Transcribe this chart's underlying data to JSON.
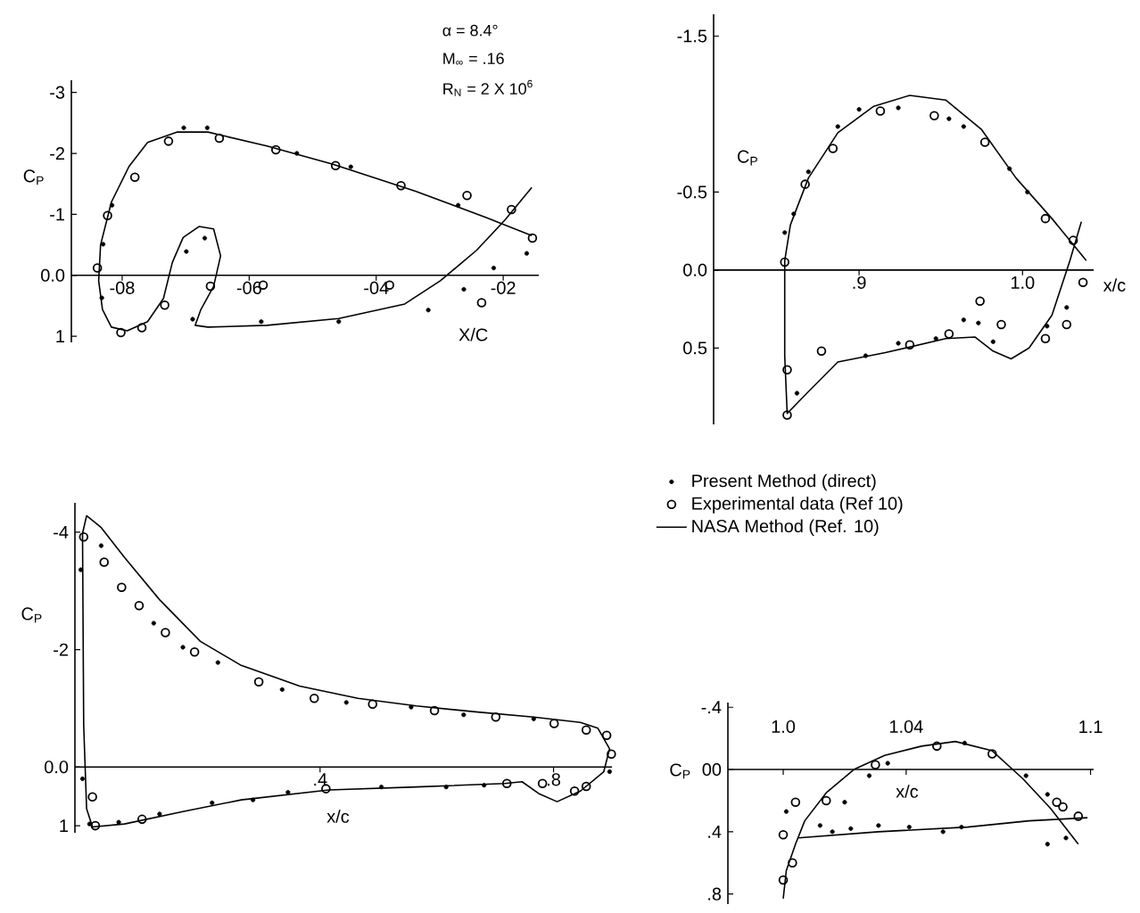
{
  "chart_data": [
    {
      "type": "scatter",
      "xlabel": "X/C",
      "ylabel": "C$_{P}$",
      "annotations": [
        "α = 8.4°",
        "M$_{∞}$ = .16",
        "R$_{N}$ = 2 X 10$^{6}$"
      ],
      "xlim": [
        -8.8,
        -1.44
      ],
      "ylim": [
        1.1,
        -3.2
      ],
      "xticks": [
        {
          "value": -8,
          "label": "-08"
        },
        {
          "value": -6,
          "label": "-06"
        },
        {
          "value": -4,
          "label": "-04"
        },
        {
          "value": -2,
          "label": "-02"
        }
      ],
      "yticks": [
        -3,
        -2,
        -1,
        {
          "value": 0,
          "label": "0.0"
        },
        1
      ],
      "series": [
        {
          "marker": "circle",
          "color": "#000000",
          "x": [
            -7.03,
            -6.66,
            -5.25,
            -4.4,
            -2.71,
            -1.63,
            -2.15,
            -2.62,
            -3.18,
            -4.59,
            -5.81,
            -6.89,
            -6.7,
            -6.99,
            -8.3,
            -8.16,
            -8.32
          ],
          "values": [
            -2.42,
            -2.42,
            -2.0,
            -1.78,
            -1.15,
            -0.36,
            -0.12,
            0.23,
            0.57,
            0.76,
            0.76,
            0.72,
            -0.61,
            -0.39,
            -0.51,
            -1.15,
            0.37
          ]
        },
        {
          "marker": "circle",
          "color": "#000000",
          "x": [
            -8.39,
            -8.23,
            -7.8,
            -7.27,
            -6.47,
            -5.58,
            -4.64,
            -3.61,
            -2.57,
            -1.87,
            -1.54,
            -8.02,
            -7.69,
            -7.33,
            -6.61,
            -5.78,
            -3.79,
            -2.34
          ],
          "values": [
            -0.12,
            -0.98,
            -1.61,
            -2.2,
            -2.25,
            -2.06,
            -1.8,
            -1.47,
            -1.31,
            -1.08,
            -0.61,
            0.94,
            0.86,
            0.49,
            0.18,
            0.16,
            0.16,
            0.45
          ]
        },
        {
          "type": "line",
          "line_style": "solid",
          "color": "#000000",
          "x": [
            -1.55,
            -2.25,
            -3.38,
            -4.68,
            -5.72,
            -6.65,
            -7.13,
            -7.6,
            -7.89,
            -8.17,
            -8.34,
            -8.37,
            -8.31,
            -8.17,
            -7.92,
            -7.6,
            -7.35,
            -7.21,
            -7.04,
            -6.79,
            -6.56,
            -6.45,
            -6.56,
            -6.76,
            -6.85,
            -6.65,
            -5.72,
            -4.59,
            -3.55,
            -2.99,
            -2.42,
            -1.97,
            -1.55
          ],
          "values": [
            -0.65,
            -0.94,
            -1.38,
            -1.82,
            -2.12,
            -2.35,
            -2.35,
            -2.18,
            -1.79,
            -1.2,
            -0.5,
            0.09,
            0.56,
            0.85,
            0.91,
            0.76,
            0.38,
            -0.21,
            -0.62,
            -0.8,
            -0.76,
            -0.32,
            0.18,
            0.56,
            0.82,
            0.85,
            0.82,
            0.71,
            0.47,
            0.09,
            -0.41,
            -0.91,
            -1.44
          ]
        }
      ]
    },
    {
      "type": "scatter",
      "xlabel": "x/c",
      "ylabel": "C$_{P}$",
      "xlim": [
        0.811,
        1.0435
      ],
      "ylim": [
        0.99,
        -1.64
      ],
      "xticks": [
        {
          "value": 0.9,
          "label": ".9"
        },
        {
          "value": 1.0,
          "label": "1.0"
        }
      ],
      "yticks": [
        -1.5,
        -0.5,
        {
          "value": 0,
          "label": "0.0"
        },
        0.5
      ],
      "series": [
        {
          "marker": "circle",
          "color": "#000000",
          "x": [
            0.8545,
            0.86,
            0.869,
            0.887,
            0.9,
            0.924,
            0.955,
            0.964,
            0.992,
            1.003,
            0.964,
            0.973,
            0.982,
            1.015,
            1.027,
            0.862,
            0.904,
            0.924,
            0.947
          ],
          "values": [
            -0.24,
            -0.36,
            -0.63,
            -0.92,
            -1.03,
            -1.04,
            -0.97,
            -0.92,
            -0.65,
            -0.5,
            0.32,
            0.34,
            0.46,
            0.36,
            0.24,
            0.79,
            0.55,
            0.47,
            0.44
          ]
        },
        {
          "marker": "circle",
          "color": "#000000",
          "x": [
            0.8545,
            0.867,
            0.884,
            0.913,
            0.946,
            0.977,
            1.014,
            1.031,
            1.037,
            1.027,
            1.014,
            0.987,
            0.974,
            0.955,
            0.931,
            0.877,
            0.856,
            0.856
          ],
          "values": [
            -0.05,
            -0.55,
            -0.78,
            -1.02,
            -0.99,
            -0.82,
            -0.33,
            -0.19,
            0.08,
            0.35,
            0.44,
            0.35,
            0.2,
            0.41,
            0.48,
            0.52,
            0.64,
            0.93
          ]
        },
        {
          "type": "line",
          "line_style": "solid",
          "color": "#000000",
          "x": [
            1.039,
            1.018,
            0.996,
            0.975,
            0.953,
            0.931,
            0.909,
            0.887,
            0.869,
            0.858,
            0.8545,
            0.8545,
            0.856,
            0.869,
            0.887,
            0.916,
            0.953,
            0.971,
            0.982,
            0.993,
            1.004,
            1.018,
            1.029,
            1.036
          ],
          "values": [
            -0.06,
            -0.33,
            -0.59,
            -0.9,
            -1.09,
            -1.12,
            -1.05,
            -0.88,
            -0.59,
            -0.29,
            -0.06,
            0.55,
            0.92,
            0.78,
            0.59,
            0.53,
            0.44,
            0.43,
            0.52,
            0.57,
            0.5,
            0.29,
            -0.06,
            -0.31
          ]
        }
      ]
    },
    {
      "type": "scatter",
      "xlabel": "x/c",
      "ylabel": "C$_{P}$",
      "legend": "top right",
      "xlim": [
        -0.02,
        0.9
      ],
      "ylim": [
        1.12,
        -4.5
      ],
      "xticks": [
        {
          "value": 0.4,
          "label": ".4"
        },
        {
          "value": 0.8,
          "label": ".8"
        }
      ],
      "yticks": [
        -4,
        -2,
        {
          "value": 0,
          "label": "0.0"
        },
        1
      ],
      "series": [
        {
          "name": "Present Method (direct)",
          "marker": "circle",
          "color": "#000000",
          "x": [
            -0.01,
            0.025,
            0.115,
            0.165,
            0.225,
            0.335,
            0.445,
            0.556,
            0.646,
            0.766,
            0.005,
            0.055,
            0.125,
            0.215,
            0.285,
            0.345,
            0.505,
            0.616,
            0.681,
            0.896,
            -0.007
          ],
          "values": [
            -3.36,
            -3.77,
            -2.45,
            -2.04,
            -1.78,
            -1.32,
            -1.1,
            -1.02,
            -0.89,
            -0.82,
            0.97,
            0.94,
            0.8,
            0.61,
            0.56,
            0.43,
            0.34,
            0.34,
            0.31,
            0.08,
            0.2
          ]
        },
        {
          "name": "Experimental data (Ref 10)",
          "marker": "circle",
          "color": "#000000",
          "x": [
            -0.005,
            0.03,
            0.06,
            0.09,
            0.135,
            0.185,
            0.295,
            0.39,
            0.49,
            0.596,
            0.701,
            0.801,
            0.856,
            0.891,
            0.899,
            0.015,
            0.095,
            0.41,
            0.72,
            0.781,
            0.836,
            0.856,
            0.01
          ],
          "values": [
            -3.92,
            -3.49,
            -3.06,
            -2.75,
            -2.29,
            -1.96,
            -1.45,
            -1.17,
            -1.07,
            -0.96,
            -0.85,
            -0.74,
            -0.63,
            -0.54,
            -0.22,
            1.0,
            0.89,
            0.37,
            0.28,
            0.28,
            0.41,
            0.33,
            0.51
          ]
        },
        {
          "name": "NASA Method (Ref. 10)",
          "type": "line",
          "line_style": "solid",
          "color": "#000000",
          "x": [
            0.886,
            0.896,
            0.876,
            0.846,
            0.766,
            0.666,
            0.565,
            0.465,
            0.365,
            0.265,
            0.195,
            0.125,
            0.065,
            0.025,
            0.0,
            -0.007,
            -0.005,
            0.0,
            0.01,
            0.065,
            0.165,
            0.265,
            0.415,
            0.565,
            0.716,
            0.746,
            0.776,
            0.806,
            0.846,
            0.886,
            0.896
          ],
          "values": [
            0.08,
            -0.31,
            -0.66,
            -0.76,
            -0.85,
            -0.94,
            -1.04,
            -1.17,
            -1.38,
            -1.73,
            -2.14,
            -2.85,
            -3.57,
            -4.08,
            -4.28,
            -3.98,
            -0.71,
            0.71,
            1.02,
            0.97,
            0.76,
            0.56,
            0.39,
            0.34,
            0.28,
            0.25,
            0.46,
            0.59,
            0.41,
            0.08,
            -0.31
          ]
        }
      ]
    },
    {
      "type": "scatter",
      "xlabel": "x/c",
      "ylabel": "C$_{P}$",
      "xlim": [
        0.982,
        1.101
      ],
      "ylim": [
        0.865,
        -0.43
      ],
      "xticks": [
        {
          "value": 1.0,
          "label": "1.0"
        },
        1.04,
        1.1
      ],
      "yticks": [
        {
          "value": -0.4,
          "label": "-.4"
        },
        {
          "value": 0,
          "label": "00"
        },
        {
          "value": 0.4,
          "label": ".4"
        },
        {
          "value": 0.8,
          "label": ".8"
        }
      ],
      "series": [
        {
          "marker": "circle",
          "color": "#000000",
          "x": [
            1.001,
            1.012,
            1.016,
            1.022,
            1.031,
            1.041,
            1.052,
            1.058,
            1.02,
            1.028,
            1.034,
            1.059,
            1.079,
            1.086,
            1.086,
            1.092
          ],
          "values": [
            0.27,
            0.36,
            0.4,
            0.38,
            0.36,
            0.37,
            0.4,
            0.37,
            0.21,
            0.04,
            -0.04,
            -0.17,
            0.04,
            0.16,
            0.48,
            0.44
          ]
        },
        {
          "marker": "circle",
          "color": "#000000",
          "x": [
            1.0,
            1.004,
            1.014,
            1.03,
            1.05,
            1.068,
            1.089,
            1.091,
            1.096,
            1.0,
            1.003
          ],
          "values": [
            0.42,
            0.21,
            0.2,
            -0.03,
            -0.15,
            -0.1,
            0.21,
            0.24,
            0.3,
            0.71,
            0.6
          ]
        },
        {
          "type": "line",
          "line_style": "solid",
          "color": "#000000",
          "x": [
            1.096,
            1.087,
            1.078,
            1.068,
            1.056,
            1.045,
            1.033,
            1.023,
            1.014,
            1.007,
            1.004,
            1.001,
            1.0,
            null,
            1.005,
            1.031,
            1.06,
            1.08,
            1.099
          ],
          "values": [
            0.48,
            0.25,
            0.06,
            -0.12,
            -0.18,
            -0.15,
            -0.09,
            0.0,
            0.15,
            0.33,
            0.48,
            0.65,
            0.83,
            null,
            0.44,
            0.4,
            0.37,
            0.33,
            0.31
          ]
        }
      ]
    }
  ]
}
